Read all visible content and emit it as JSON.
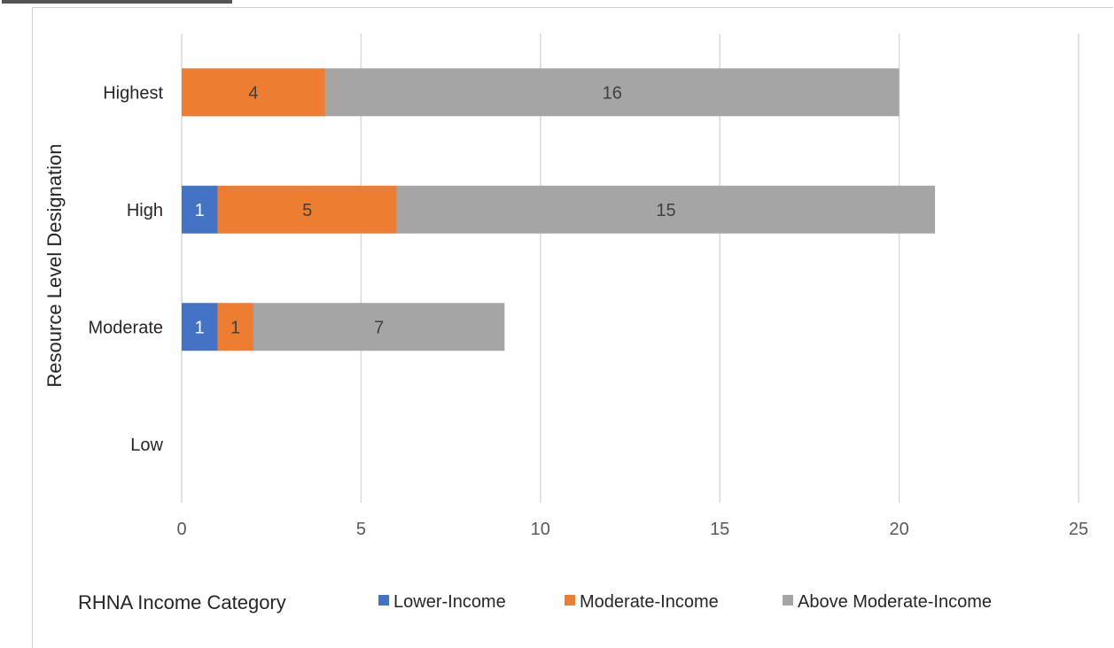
{
  "chart_data": {
    "type": "bar",
    "orientation": "horizontal",
    "stacked": true,
    "categories": [
      "Highest",
      "High",
      "Moderate",
      "Low"
    ],
    "series": [
      {
        "name": "Lower-Income",
        "values": [
          0,
          1,
          1,
          0
        ],
        "color": "#4472c4"
      },
      {
        "name": "Moderate-Income",
        "values": [
          4,
          5,
          1,
          0
        ],
        "color": "#ed7d31"
      },
      {
        "name": "Above Moderate-Income",
        "values": [
          16,
          15,
          7,
          0
        ],
        "color": "#a5a5a5"
      }
    ],
    "xlim": [
      0,
      25
    ],
    "xticks": [
      0,
      5,
      10,
      15,
      20,
      25
    ],
    "ylabel": "Resource Level Designation",
    "legend_title": "RHNA Income Category",
    "legend_position": "bottom",
    "grid": true,
    "gridline_color": "#d9d9d9"
  }
}
